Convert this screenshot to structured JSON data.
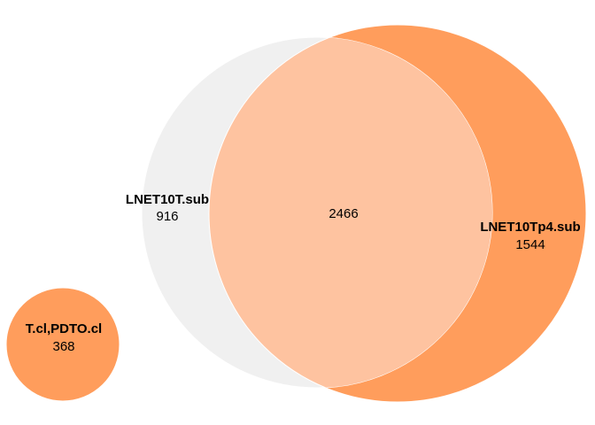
{
  "venn": {
    "sets": [
      {
        "name": "LNET10T.sub",
        "count": "916",
        "color": "#f0f0f0"
      },
      {
        "name": "LNET10Tp4.sub",
        "count": "1544",
        "color": "#ff9d5c"
      },
      {
        "name": "T.cl,PDTO.cl",
        "count": "368",
        "color": "#ff9d5c"
      }
    ],
    "intersection": {
      "count": "2466",
      "color": "#fec3a0"
    }
  }
}
